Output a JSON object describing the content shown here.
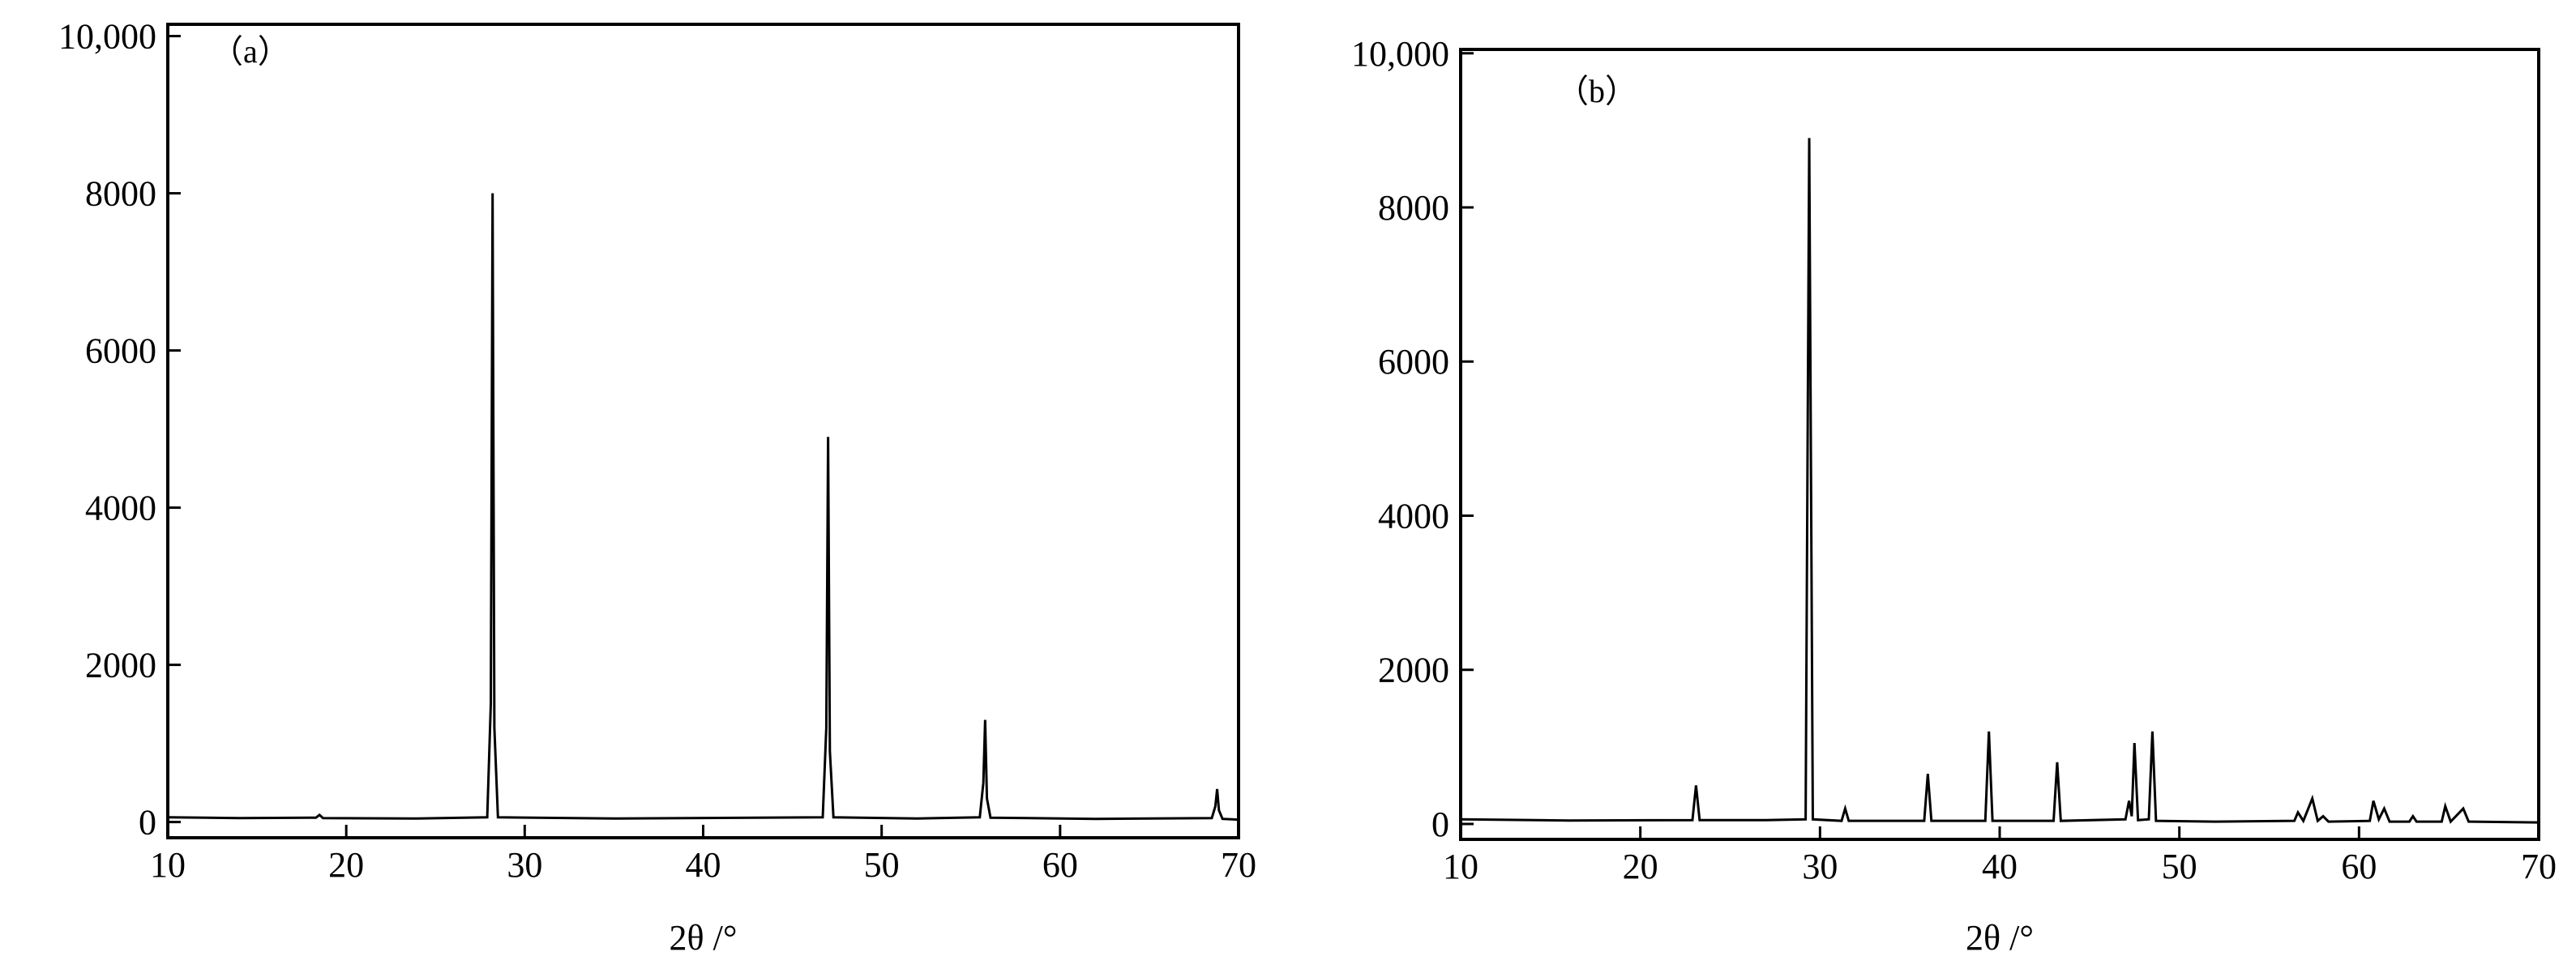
{
  "chart_data": [
    {
      "type": "line",
      "panel_label": "（a）",
      "x_label": "2θ /°",
      "color": "#000000",
      "xlim": [
        10,
        70
      ],
      "ylim": [
        -200,
        10150
      ],
      "xticks": [
        10,
        20,
        30,
        40,
        50,
        60,
        70
      ],
      "yticks": [
        0,
        2000,
        4000,
        6000,
        8000,
        {
          "value": 10000,
          "label": "10,000"
        }
      ],
      "x": [
        10,
        14,
        18.3,
        18.5,
        18.7,
        24,
        27.9,
        28.1,
        28.2,
        28.3,
        28.5,
        35,
        46.7,
        46.9,
        47.0,
        47.1,
        47.3,
        52,
        55.5,
        55.7,
        55.8,
        55.9,
        56.1,
        62,
        68.5,
        68.7,
        68.8,
        68.9,
        69.1,
        70
      ],
      "values": [
        60,
        50,
        55,
        90,
        50,
        45,
        60,
        1500,
        8000,
        1200,
        60,
        45,
        60,
        1200,
        4900,
        900,
        60,
        45,
        60,
        500,
        1300,
        300,
        55,
        40,
        50,
        200,
        420,
        150,
        40,
        30
      ]
    },
    {
      "type": "line",
      "panel_label": "（b）",
      "x_label": "2θ /°",
      "color": "#000000",
      "xlim": [
        10,
        70
      ],
      "ylim": [
        -200,
        10050
      ],
      "xticks": [
        10,
        20,
        30,
        40,
        50,
        60,
        70
      ],
      "yticks": [
        0,
        2000,
        4000,
        6000,
        8000,
        {
          "value": 10000,
          "label": "10,000"
        }
      ],
      "x": [
        10,
        16,
        22.9,
        23.1,
        23.3,
        27,
        29.2,
        29.4,
        29.6,
        31.2,
        31.4,
        31.6,
        35.8,
        36.0,
        36.2,
        39.2,
        39.4,
        39.6,
        43.0,
        43.2,
        43.4,
        47.0,
        47.2,
        47.35,
        47.5,
        47.7,
        48.3,
        48.5,
        48.7,
        52,
        56.4,
        56.6,
        56.9,
        57.4,
        57.7,
        58.0,
        58.3,
        60.6,
        60.8,
        61.1,
        61.4,
        61.7,
        62.8,
        63.0,
        63.2,
        64.6,
        64.8,
        65.1,
        65.8,
        66.1,
        70
      ],
      "values": [
        60,
        45,
        50,
        500,
        50,
        50,
        60,
        8900,
        60,
        40,
        200,
        40,
        40,
        650,
        40,
        40,
        1200,
        40,
        40,
        800,
        40,
        60,
        300,
        100,
        1050,
        50,
        60,
        1200,
        40,
        30,
        40,
        150,
        40,
        330,
        40,
        100,
        30,
        40,
        300,
        60,
        200,
        30,
        30,
        100,
        30,
        30,
        230,
        30,
        200,
        30,
        20
      ]
    }
  ]
}
